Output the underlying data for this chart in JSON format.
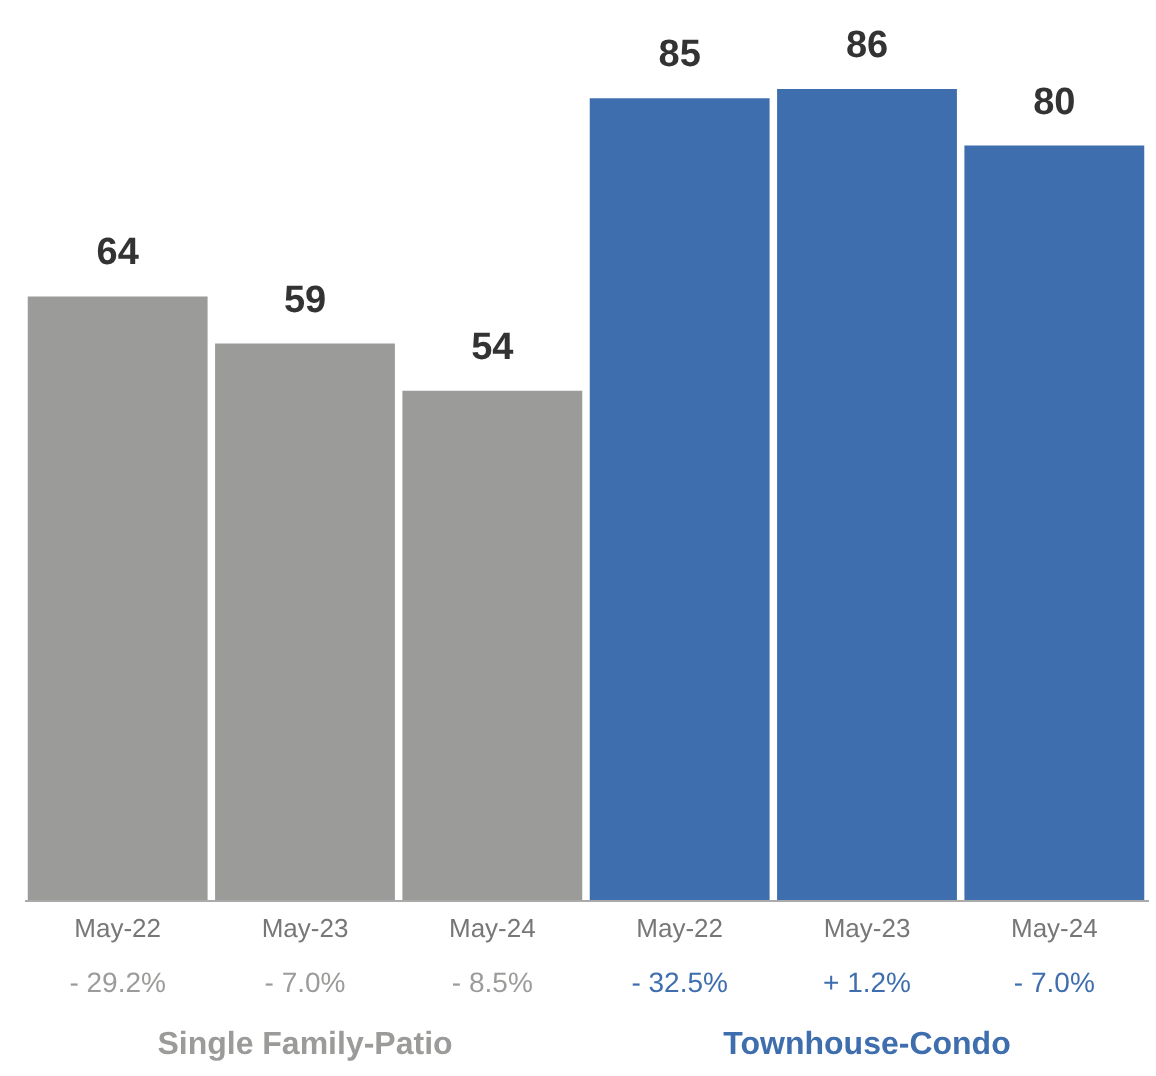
{
  "chart_data": {
    "type": "bar",
    "categories": [
      "May-22",
      "May-23",
      "May-24",
      "May-22",
      "May-23",
      "May-24"
    ],
    "series": [
      {
        "name": "Single Family-Patio",
        "color": "#9b9c99",
        "values": [
          64,
          59,
          54,
          null,
          null,
          null
        ]
      },
      {
        "name": "Townhouse-Condo",
        "color": "#3f6eae",
        "values": [
          null,
          null,
          null,
          85,
          86,
          80
        ]
      }
    ],
    "annotations": [
      "- 29.2%",
      "- 7.0%",
      "- 8.5%",
      "- 32.5%",
      "+ 1.2%",
      "- 7.0%"
    ],
    "data_labels": true
  }
}
